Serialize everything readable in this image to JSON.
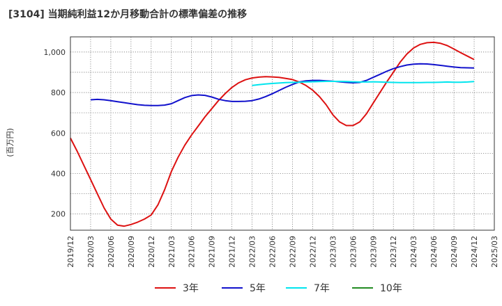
{
  "title": "[3104]  当期純利益12か月移動合計の標準偏差の推移",
  "chart_data": {
    "type": "line",
    "ylabel": "(百万円)",
    "xlabel": "",
    "ylim": [
      120,
      1075
    ],
    "yticks": [
      200,
      400,
      600,
      800,
      1000
    ],
    "ytick_labels": [
      "200",
      "400",
      "600",
      "800",
      "1,000"
    ],
    "xticks": [
      "2019/12",
      "2020/03",
      "2020/06",
      "2020/09",
      "2020/12",
      "2021/03",
      "2021/06",
      "2021/09",
      "2021/12",
      "2022/03",
      "2022/06",
      "2022/09",
      "2022/12",
      "2023/03",
      "2023/06",
      "2023/09",
      "2023/12",
      "2024/03",
      "2024/06",
      "2024/09",
      "2024/12",
      "2025/03"
    ],
    "grid": true,
    "legend_position": "bottom",
    "series": [
      {
        "name": "3年",
        "color": "#dd1111",
        "x": [
          "2019/12",
          "2020/01",
          "2020/02",
          "2020/03",
          "2020/04",
          "2020/05",
          "2020/06",
          "2020/07",
          "2020/08",
          "2020/09",
          "2020/10",
          "2020/11",
          "2020/12",
          "2021/01",
          "2021/02",
          "2021/03",
          "2021/04",
          "2021/05",
          "2021/06",
          "2021/07",
          "2021/08",
          "2021/09",
          "2021/10",
          "2021/11",
          "2021/12",
          "2022/01",
          "2022/02",
          "2022/03",
          "2022/04",
          "2022/05",
          "2022/06",
          "2022/07",
          "2022/08",
          "2022/09",
          "2022/10",
          "2022/11",
          "2022/12",
          "2023/01",
          "2023/02",
          "2023/03",
          "2023/04",
          "2023/05",
          "2023/06",
          "2023/07",
          "2023/08",
          "2023/09",
          "2023/10",
          "2023/11",
          "2023/12",
          "2024/01",
          "2024/02",
          "2024/03",
          "2024/04",
          "2024/05",
          "2024/06",
          "2024/07",
          "2024/08",
          "2024/09",
          "2024/10",
          "2024/11",
          "2024/12"
        ],
        "values": [
          575,
          510,
          440,
          370,
          300,
          230,
          175,
          145,
          140,
          148,
          160,
          175,
          195,
          245,
          320,
          410,
          480,
          540,
          590,
          635,
          680,
          720,
          760,
          795,
          825,
          848,
          863,
          872,
          876,
          878,
          877,
          875,
          870,
          864,
          852,
          835,
          812,
          780,
          740,
          690,
          655,
          637,
          637,
          655,
          695,
          748,
          800,
          852,
          900,
          950,
          990,
          1020,
          1038,
          1046,
          1048,
          1043,
          1032,
          1015,
          997,
          980,
          963
        ]
      },
      {
        "name": "5年",
        "color": "#1111cc",
        "x": [
          "2020/03",
          "2020/04",
          "2020/05",
          "2020/06",
          "2020/07",
          "2020/08",
          "2020/09",
          "2020/10",
          "2020/11",
          "2020/12",
          "2021/01",
          "2021/02",
          "2021/03",
          "2021/04",
          "2021/05",
          "2021/06",
          "2021/07",
          "2021/08",
          "2021/09",
          "2021/10",
          "2021/11",
          "2021/12",
          "2022/01",
          "2022/02",
          "2022/03",
          "2022/04",
          "2022/05",
          "2022/06",
          "2022/07",
          "2022/08",
          "2022/09",
          "2022/10",
          "2022/11",
          "2022/12",
          "2023/01",
          "2023/02",
          "2023/03",
          "2023/04",
          "2023/05",
          "2023/06",
          "2023/07",
          "2023/08",
          "2023/09",
          "2023/10",
          "2023/11",
          "2023/12",
          "2024/01",
          "2024/02",
          "2024/03",
          "2024/04",
          "2024/05",
          "2024/06",
          "2024/07",
          "2024/08",
          "2024/09",
          "2024/10",
          "2024/11",
          "2024/12"
        ],
        "values": [
          764,
          766,
          764,
          760,
          755,
          750,
          745,
          740,
          737,
          736,
          736,
          738,
          745,
          760,
          775,
          785,
          788,
          786,
          778,
          767,
          760,
          756,
          756,
          757,
          760,
          768,
          780,
          794,
          810,
          826,
          840,
          852,
          858,
          860,
          860,
          858,
          856,
          853,
          850,
          848,
          850,
          860,
          875,
          890,
          905,
          918,
          928,
          936,
          940,
          942,
          941,
          938,
          934,
          930,
          926,
          923,
          922,
          921
        ]
      },
      {
        "name": "7年",
        "color": "#00e5ee",
        "x": [
          "2022/03",
          "2022/04",
          "2022/05",
          "2022/06",
          "2022/07",
          "2022/08",
          "2022/09",
          "2022/10",
          "2022/11",
          "2022/12",
          "2023/01",
          "2023/02",
          "2023/03",
          "2023/04",
          "2023/05",
          "2023/06",
          "2023/07",
          "2023/08",
          "2023/09",
          "2023/10",
          "2023/11",
          "2023/12",
          "2024/01",
          "2024/02",
          "2024/03",
          "2024/04",
          "2024/05",
          "2024/06",
          "2024/07",
          "2024/08",
          "2024/09",
          "2024/10",
          "2024/11",
          "2024/12"
        ],
        "values": [
          835,
          839,
          842,
          845,
          847,
          849,
          850,
          851,
          852,
          853,
          854,
          855,
          855,
          855,
          854,
          853,
          852,
          852,
          853,
          852,
          851,
          850,
          849,
          849,
          849,
          849,
          850,
          850,
          851,
          852,
          851,
          851,
          852,
          854
        ]
      },
      {
        "name": "10年",
        "color": "#228B22",
        "x": [],
        "values": []
      }
    ]
  }
}
